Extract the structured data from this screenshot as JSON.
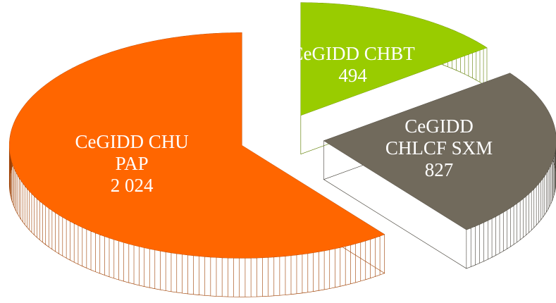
{
  "chart_data": {
    "type": "pie",
    "categories": [
      "CeGIDD CHU PAP",
      "CeGIDD CHBT",
      "CeGIDD CHLCF SXM"
    ],
    "values": [
      2024,
      494,
      827
    ],
    "value_labels": [
      "2 024",
      "494",
      "827"
    ],
    "colors": [
      "#ff6600",
      "#99cc00",
      "#716a5c"
    ]
  }
}
